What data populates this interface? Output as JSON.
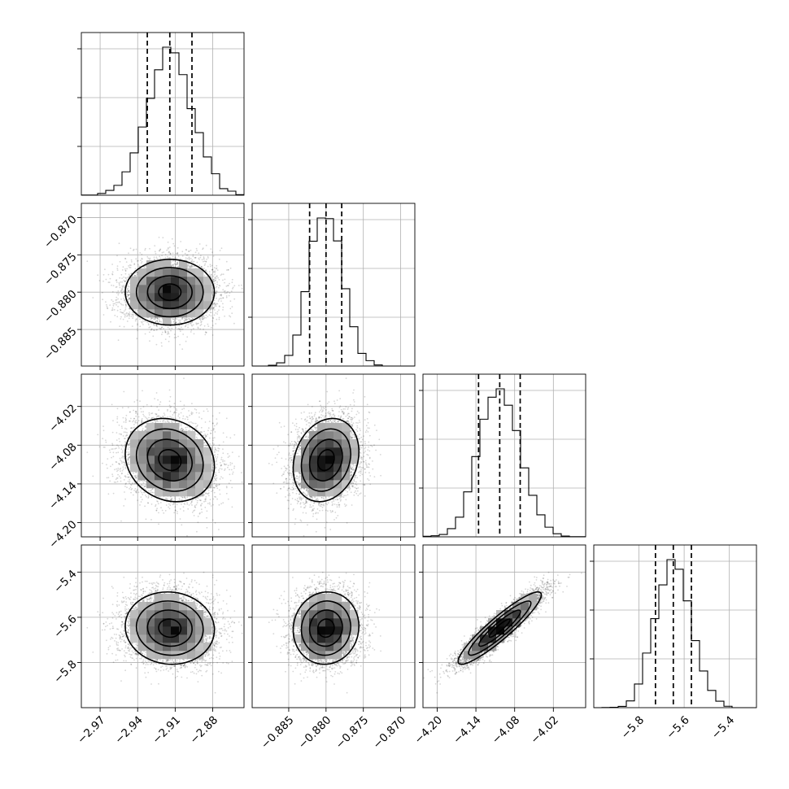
{
  "chart_data": {
    "type": "corner",
    "parameters": [
      {
        "range": [
          -2.985,
          -2.855
        ],
        "ticks": [
          -2.97,
          -2.94,
          -2.91,
          -2.88
        ],
        "tick_labels": [
          "−2.97",
          "−2.94",
          "−2.91",
          "−2.88"
        ],
        "median": -2.9143,
        "quantile_16": -2.9323,
        "quantile_84": -2.8966,
        "sigma": 0.0178
      },
      {
        "range": [
          -0.8899,
          -0.8681
        ],
        "ticks": [
          -0.885,
          -0.88,
          -0.875,
          -0.87
        ],
        "tick_labels": [
          "−0.885",
          "−0.880",
          "−0.875",
          "−0.870"
        ],
        "median": -0.88,
        "quantile_16": -0.8822,
        "quantile_84": -0.8779,
        "sigma": 0.0022
      },
      {
        "range": [
          -4.222,
          -3.97
        ],
        "ticks": [
          -4.2,
          -4.14,
          -4.08,
          -4.02
        ],
        "tick_labels": [
          "−4.20",
          "−4.14",
          "−4.08",
          "−4.02"
        ],
        "median": -4.1031,
        "quantile_16": -4.1359,
        "quantile_84": -4.0714,
        "sigma": 0.0322
      },
      {
        "range": [
          -6.0,
          -5.28
        ],
        "ticks": [
          -5.8,
          -5.6,
          -5.4
        ],
        "tick_labels": [
          "−5.8",
          "−5.6",
          "−5.4"
        ],
        "median": -5.648,
        "quantile_16": -5.727,
        "quantile_84": -5.568,
        "sigma": 0.08
      }
    ],
    "correlations": [
      {
        "pair": [
          0,
          1
        ],
        "rho": 0.0
      },
      {
        "pair": [
          0,
          2
        ],
        "rho": -0.15
      },
      {
        "pair": [
          1,
          2
        ],
        "rho": 0.2
      },
      {
        "pair": [
          0,
          3
        ],
        "rho": -0.05
      },
      {
        "pair": [
          1,
          3
        ],
        "rho": 0.05
      },
      {
        "pair": [
          2,
          3
        ],
        "rho": 0.92
      }
    ],
    "histogram_bins": 20,
    "show_grid": true,
    "colors": {
      "axis": "#000000",
      "grid": "#b0b0b0",
      "points": "#000000",
      "contour": "#000000"
    }
  }
}
